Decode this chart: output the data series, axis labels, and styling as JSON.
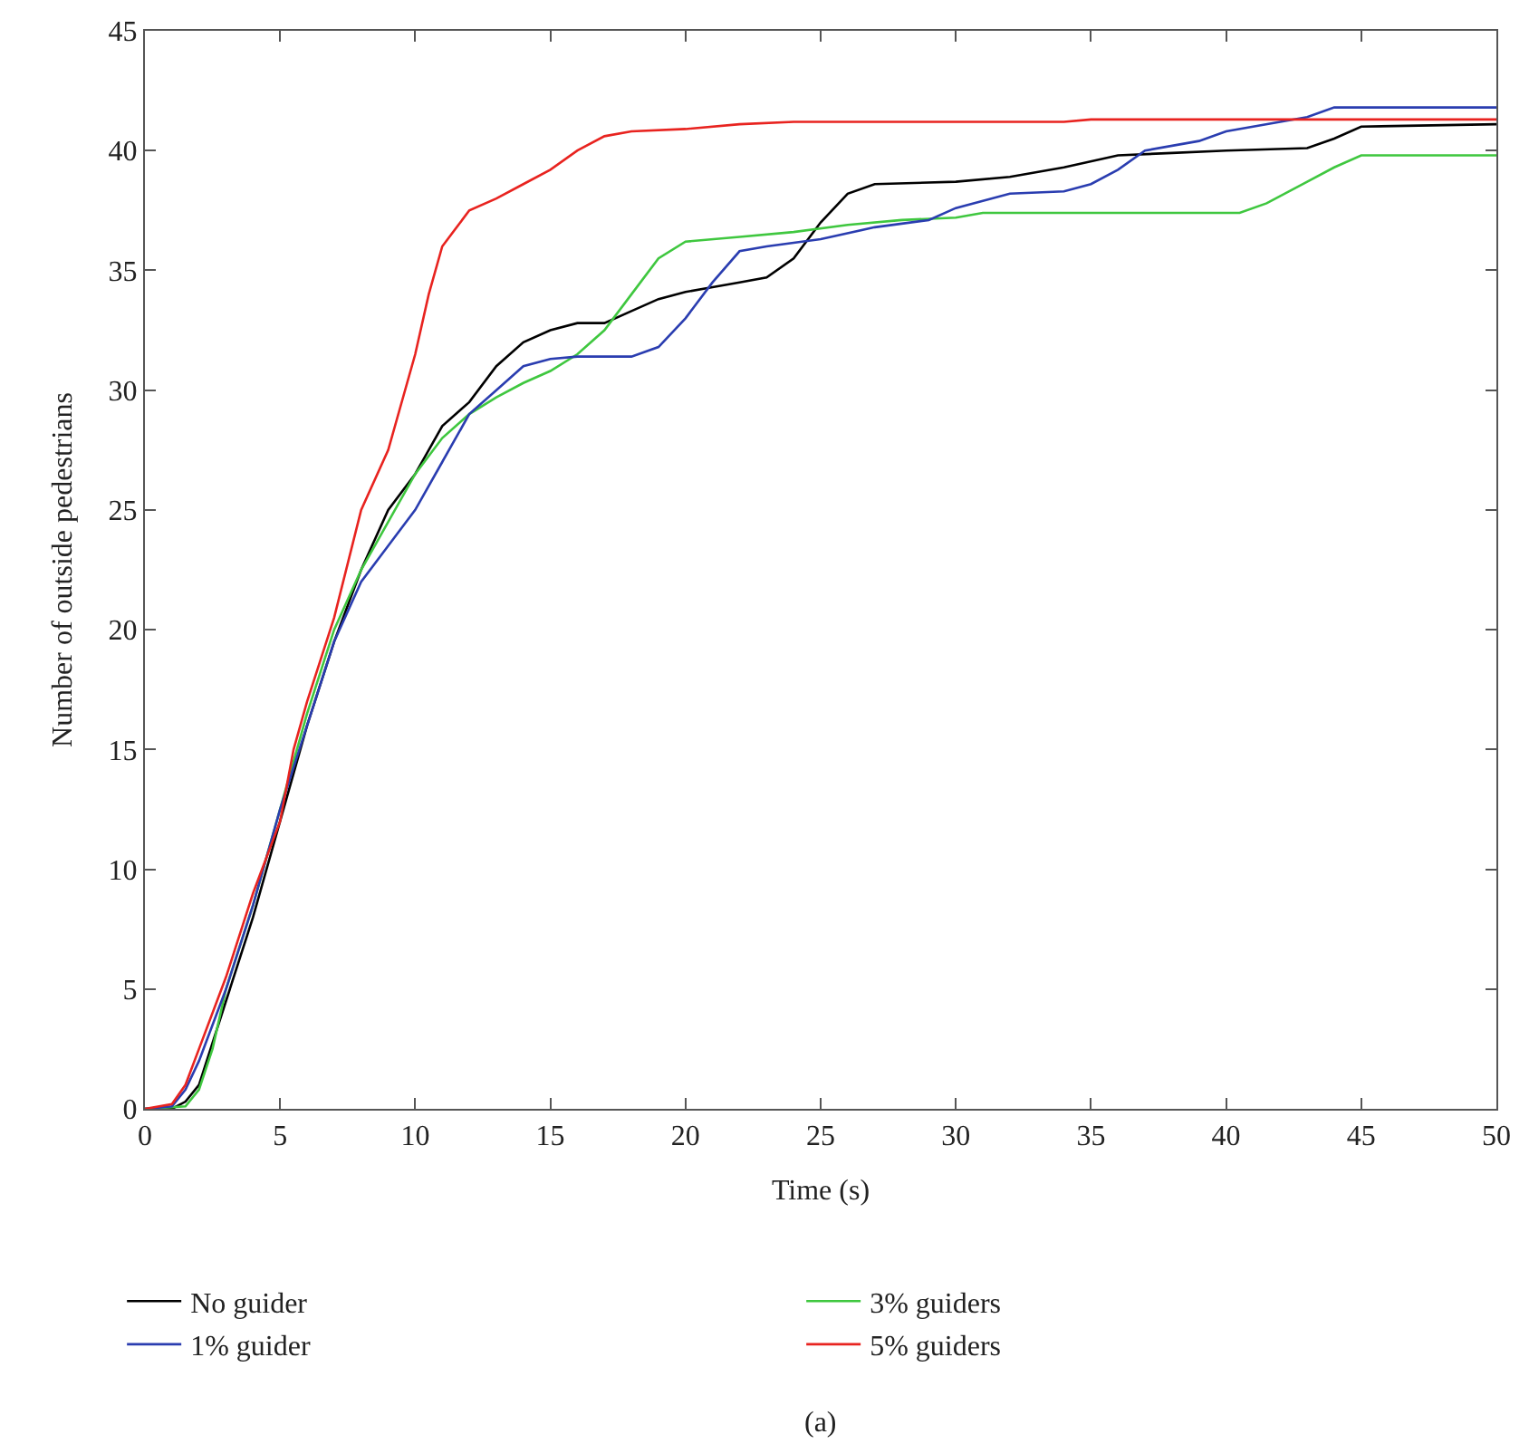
{
  "chart_data": {
    "type": "line",
    "xlabel": "Time (s)",
    "ylabel": "Number of outside pedestrians",
    "xlim": [
      0,
      50
    ],
    "xticks": [
      0,
      5,
      10,
      15,
      20,
      25,
      30,
      35,
      40,
      45,
      50
    ],
    "ylim": [
      0,
      45
    ],
    "yticks": [
      0,
      5,
      10,
      15,
      20,
      25,
      30,
      35,
      40,
      45
    ],
    "legend": "bottom",
    "marker": "none",
    "line_style": "solid",
    "annotations": [
      "(a)"
    ],
    "series": [
      {
        "name": "No guider",
        "color": "#000000",
        "x": [
          0,
          1,
          1.5,
          2,
          3,
          4,
          5,
          6,
          7,
          8,
          9,
          10,
          11,
          12,
          13,
          14,
          15,
          16,
          17,
          18,
          19,
          20,
          21,
          22,
          23,
          24,
          25,
          26,
          27,
          30,
          32,
          34,
          36,
          38,
          40,
          43,
          44,
          45,
          50
        ],
        "values": [
          0,
          0,
          0.3,
          1,
          4.5,
          8,
          12,
          16,
          19.5,
          22.5,
          25,
          26.5,
          28.5,
          29.5,
          31,
          32,
          32.5,
          32.8,
          32.8,
          33.3,
          33.8,
          34.1,
          34.3,
          34.5,
          34.7,
          35.5,
          37,
          38.2,
          38.6,
          38.7,
          38.9,
          39.3,
          39.8,
          39.9,
          40,
          40.1,
          40.5,
          41,
          41.1
        ]
      },
      {
        "name": "3% guiders",
        "color": "#3fc73f",
        "x": [
          0,
          1.5,
          2,
          2.5,
          3,
          4,
          5,
          6,
          7,
          8,
          9,
          10,
          11,
          12,
          13,
          14,
          15,
          16,
          17,
          18,
          19,
          20,
          22,
          24,
          26,
          28,
          30,
          31,
          34,
          40.5,
          41.5,
          43,
          44,
          45,
          50
        ],
        "values": [
          0,
          0.1,
          0.8,
          2.5,
          5,
          8.5,
          12.5,
          16.5,
          20,
          22.5,
          24.5,
          26.5,
          28,
          29,
          29.7,
          30.3,
          30.8,
          31.5,
          32.5,
          34,
          35.5,
          36.2,
          36.4,
          36.6,
          36.9,
          37.1,
          37.2,
          37.4,
          37.4,
          37.4,
          37.8,
          38.7,
          39.3,
          39.8,
          39.8
        ]
      },
      {
        "name": "1% guider",
        "color": "#2a3db0",
        "x": [
          0,
          1,
          1.5,
          2,
          3,
          4,
          5,
          6,
          7,
          8,
          9,
          10,
          11,
          12,
          13,
          14,
          15,
          16,
          18,
          19,
          20,
          21,
          22,
          23,
          25,
          27,
          29,
          30,
          32,
          34,
          35,
          36,
          37,
          39,
          40,
          42,
          43,
          44,
          50
        ],
        "values": [
          0,
          0.1,
          0.8,
          2,
          5,
          8.5,
          12.5,
          16,
          19.5,
          22,
          23.5,
          25,
          27,
          29,
          30,
          31,
          31.3,
          31.4,
          31.4,
          31.8,
          33,
          34.5,
          35.8,
          36,
          36.3,
          36.8,
          37.1,
          37.6,
          38.2,
          38.3,
          38.6,
          39.2,
          40,
          40.4,
          40.8,
          41.2,
          41.4,
          41.8,
          41.8
        ]
      },
      {
        "name": "5% guiders",
        "color": "#e8231f",
        "x": [
          0,
          1,
          1.5,
          2,
          3,
          4,
          5,
          5.5,
          6,
          7,
          8,
          9,
          10,
          10.5,
          11,
          12,
          13,
          14,
          15,
          16,
          17,
          18,
          20,
          22,
          24,
          34,
          35,
          50
        ],
        "values": [
          0,
          0.2,
          1,
          2.5,
          5.5,
          9,
          12,
          15,
          17,
          20.5,
          25,
          27.5,
          31.5,
          34,
          36,
          37.5,
          38,
          38.6,
          39.2,
          40,
          40.6,
          40.8,
          40.9,
          41.1,
          41.2,
          41.2,
          41.3,
          41.3
        ]
      }
    ]
  }
}
